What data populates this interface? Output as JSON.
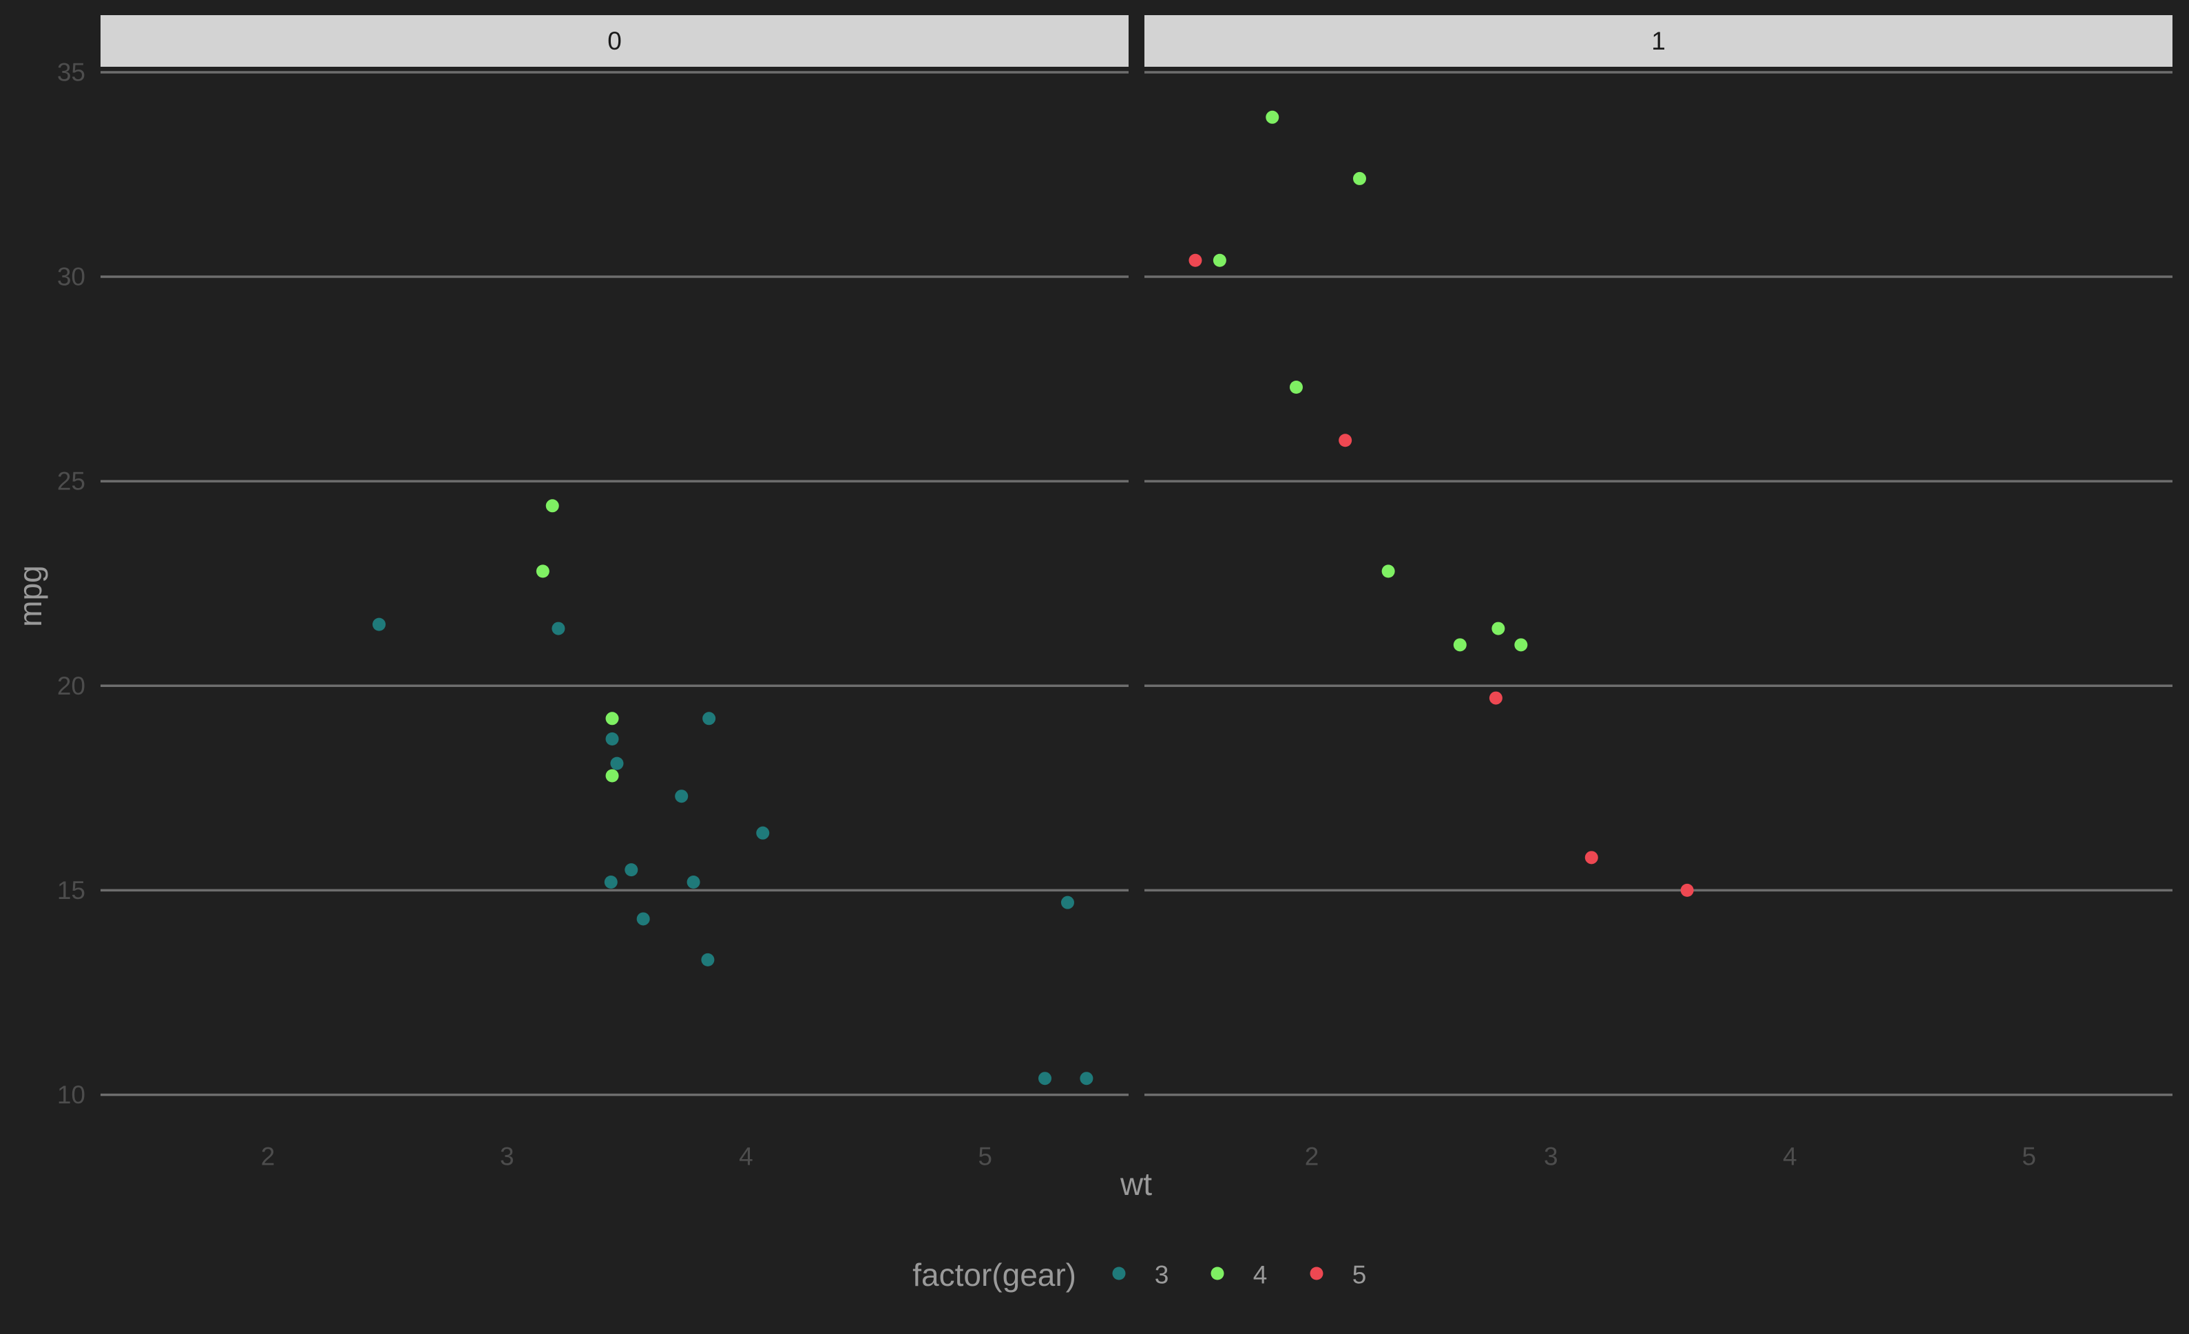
{
  "colors": {
    "background": "#202020",
    "panel": "#202020",
    "strip": "#d3d3d3",
    "strip_text": "#1a1a1a",
    "gridline": "#6e6e6e",
    "tick_text": "#4d4d4d",
    "axis_title": "#9a9a9a",
    "legend_text": "#9a9a9a"
  },
  "chart_data": {
    "type": "scatter",
    "title": "",
    "xlabel": "wt",
    "ylabel": "mpg",
    "x_ticks": [
      2,
      3,
      4,
      5
    ],
    "y_ticks": [
      10,
      15,
      20,
      25,
      30,
      35
    ],
    "xlim": [
      1.3,
      5.6
    ],
    "ylim": [
      9.2,
      35.1
    ],
    "grid": "horizontal major lines only",
    "facet_variable": "am",
    "panels": [
      {
        "label": "0",
        "points": [
          {
            "x": 2.465,
            "y": 21.5,
            "gear": "3"
          },
          {
            "x": 3.215,
            "y": 21.4,
            "gear": "3"
          },
          {
            "x": 3.44,
            "y": 18.7,
            "gear": "3"
          },
          {
            "x": 3.46,
            "y": 18.1,
            "gear": "3"
          },
          {
            "x": 3.57,
            "y": 14.3,
            "gear": "3"
          },
          {
            "x": 4.07,
            "y": 16.4,
            "gear": "3"
          },
          {
            "x": 3.73,
            "y": 17.3,
            "gear": "3"
          },
          {
            "x": 3.78,
            "y": 15.2,
            "gear": "3"
          },
          {
            "x": 5.25,
            "y": 10.4,
            "gear": "3"
          },
          {
            "x": 5.424,
            "y": 10.4,
            "gear": "3"
          },
          {
            "x": 5.345,
            "y": 14.7,
            "gear": "3"
          },
          {
            "x": 3.52,
            "y": 15.5,
            "gear": "3"
          },
          {
            "x": 3.435,
            "y": 15.2,
            "gear": "3"
          },
          {
            "x": 3.84,
            "y": 13.3,
            "gear": "3"
          },
          {
            "x": 3.845,
            "y": 19.2,
            "gear": "3"
          },
          {
            "x": 3.19,
            "y": 24.4,
            "gear": "4"
          },
          {
            "x": 3.15,
            "y": 22.8,
            "gear": "4"
          },
          {
            "x": 3.44,
            "y": 19.2,
            "gear": "4"
          },
          {
            "x": 3.44,
            "y": 17.8,
            "gear": "4"
          }
        ]
      },
      {
        "label": "1",
        "points": [
          {
            "x": 2.62,
            "y": 21.0,
            "gear": "4"
          },
          {
            "x": 2.875,
            "y": 21.0,
            "gear": "4"
          },
          {
            "x": 2.32,
            "y": 22.8,
            "gear": "4"
          },
          {
            "x": 2.2,
            "y": 32.4,
            "gear": "4"
          },
          {
            "x": 1.615,
            "y": 30.4,
            "gear": "4"
          },
          {
            "x": 1.835,
            "y": 33.9,
            "gear": "4"
          },
          {
            "x": 1.935,
            "y": 27.3,
            "gear": "4"
          },
          {
            "x": 2.78,
            "y": 21.4,
            "gear": "4"
          },
          {
            "x": 2.14,
            "y": 26.0,
            "gear": "5"
          },
          {
            "x": 1.513,
            "y": 30.4,
            "gear": "5"
          },
          {
            "x": 3.17,
            "y": 15.8,
            "gear": "5"
          },
          {
            "x": 2.77,
            "y": 19.7,
            "gear": "5"
          },
          {
            "x": 3.57,
            "y": 15.0,
            "gear": "5"
          }
        ]
      }
    ],
    "legend": {
      "title": "factor(gear)",
      "placement": "bottom",
      "entries": [
        {
          "label": "3",
          "color": "#1f7a7a"
        },
        {
          "label": "4",
          "color": "#7ff063"
        },
        {
          "label": "5",
          "color": "#ee4852"
        }
      ]
    }
  }
}
